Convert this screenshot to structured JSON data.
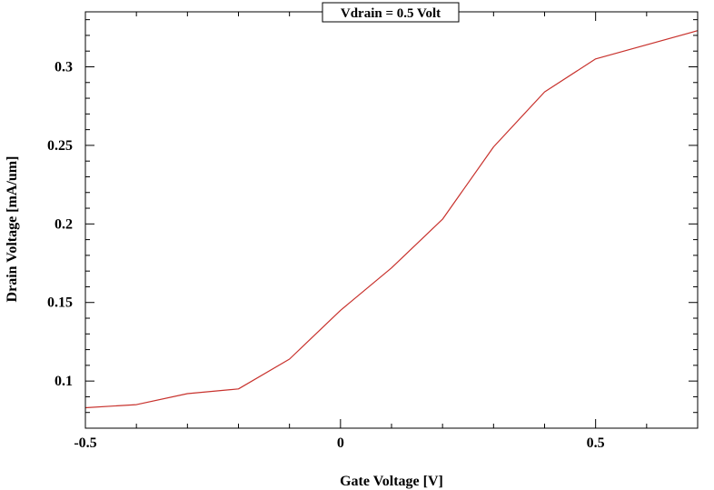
{
  "chart_data": {
    "type": "line",
    "title": "Vdrain = 0.5 Volt",
    "xlabel": "Gate Voltage [V]",
    "ylabel": "Drain Voltage [mA/um]",
    "xlim": [
      -0.5,
      0.7
    ],
    "ylim": [
      0.07,
      0.335
    ],
    "grid": false,
    "x_ticks": [
      -0.5,
      0,
      0.5
    ],
    "x_tick_labels": [
      "-0.5",
      "0",
      "0.5"
    ],
    "y_ticks": [
      0.1,
      0.15,
      0.2,
      0.25,
      0.3
    ],
    "y_tick_labels": [
      "0.1",
      "0.15",
      "0.2",
      "0.25",
      "0.3"
    ],
    "series": [
      {
        "color": "#c8322d",
        "x": [
          -0.5,
          -0.4,
          -0.3,
          -0.2,
          -0.1,
          0.0,
          0.1,
          0.2,
          0.3,
          0.4,
          0.5,
          0.7
        ],
        "y": [
          0.083,
          0.085,
          0.092,
          0.095,
          0.114,
          0.145,
          0.172,
          0.203,
          0.249,
          0.284,
          0.305,
          0.323
        ]
      }
    ]
  }
}
